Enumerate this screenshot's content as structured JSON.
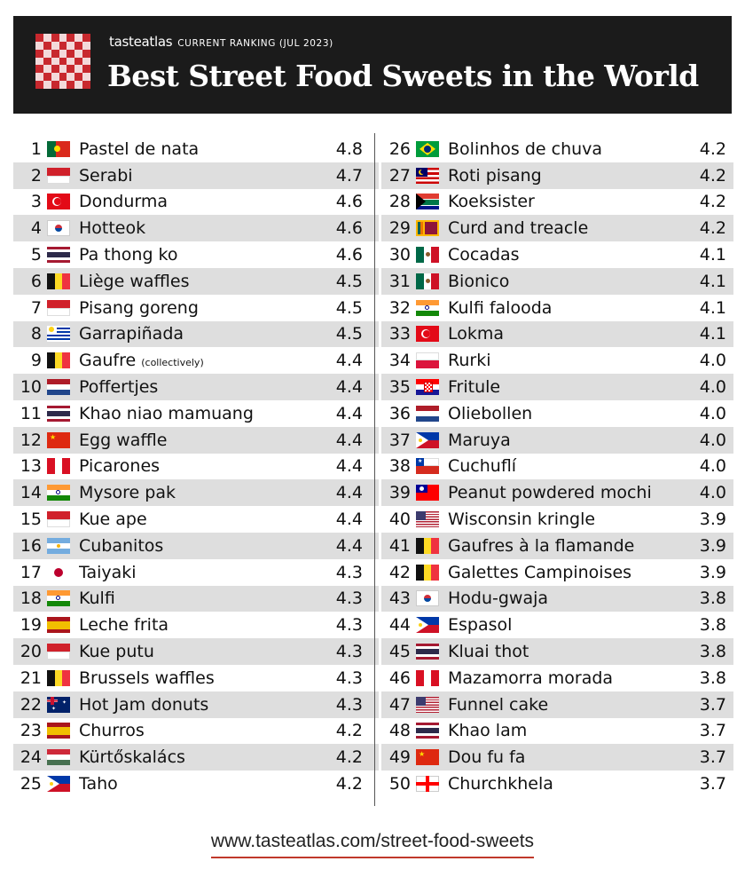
{
  "header": {
    "brand": "tasteatlas",
    "ranking_label": "CURRENT RANKING (JUL 2023)",
    "title": "Best Street Food Sweets in the World"
  },
  "colors": {
    "header_bg": "#1b1b1b",
    "row_alt": "#dedede",
    "underline": "#c0392b",
    "logo_red": "#c8282e"
  },
  "rankings": [
    {
      "rank": "1",
      "name": "Pastel de nata",
      "score": "4.8",
      "flag": "pt"
    },
    {
      "rank": "2",
      "name": "Serabi",
      "score": "4.7",
      "flag": "id"
    },
    {
      "rank": "3",
      "name": "Dondurma",
      "score": "4.6",
      "flag": "tr"
    },
    {
      "rank": "4",
      "name": "Hotteok",
      "score": "4.6",
      "flag": "kr"
    },
    {
      "rank": "5",
      "name": "Pa thong ko",
      "score": "4.6",
      "flag": "th"
    },
    {
      "rank": "6",
      "name": "Liège waffles",
      "score": "4.5",
      "flag": "be"
    },
    {
      "rank": "7",
      "name": "Pisang goreng",
      "score": "4.5",
      "flag": "id"
    },
    {
      "rank": "8",
      "name": "Garrapiñada",
      "score": "4.5",
      "flag": "uy"
    },
    {
      "rank": "9",
      "name": "Gaufre",
      "note": "(collectively)",
      "score": "4.4",
      "flag": "be"
    },
    {
      "rank": "10",
      "name": "Poffertjes",
      "score": "4.4",
      "flag": "nl"
    },
    {
      "rank": "11",
      "name": "Khao niao mamuang",
      "score": "4.4",
      "flag": "th"
    },
    {
      "rank": "12",
      "name": "Egg waffle",
      "score": "4.4",
      "flag": "cn"
    },
    {
      "rank": "13",
      "name": "Picarones",
      "score": "4.4",
      "flag": "pe"
    },
    {
      "rank": "14",
      "name": "Mysore pak",
      "score": "4.4",
      "flag": "in"
    },
    {
      "rank": "15",
      "name": "Kue ape",
      "score": "4.4",
      "flag": "id"
    },
    {
      "rank": "16",
      "name": "Cubanitos",
      "score": "4.4",
      "flag": "ar"
    },
    {
      "rank": "17",
      "name": "Taiyaki",
      "score": "4.3",
      "flag": "jp"
    },
    {
      "rank": "18",
      "name": "Kulfi",
      "score": "4.3",
      "flag": "in"
    },
    {
      "rank": "19",
      "name": "Leche frita",
      "score": "4.3",
      "flag": "es"
    },
    {
      "rank": "20",
      "name": "Kue putu",
      "score": "4.3",
      "flag": "id"
    },
    {
      "rank": "21",
      "name": "Brussels waffles",
      "score": "4.3",
      "flag": "be"
    },
    {
      "rank": "22",
      "name": "Hot Jam donuts",
      "score": "4.3",
      "flag": "au"
    },
    {
      "rank": "23",
      "name": "Churros",
      "score": "4.2",
      "flag": "es"
    },
    {
      "rank": "24",
      "name": "Kürtőskalács",
      "score": "4.2",
      "flag": "hu"
    },
    {
      "rank": "25",
      "name": "Taho",
      "score": "4.2",
      "flag": "ph"
    },
    {
      "rank": "26",
      "name": "Bolinhos de chuva",
      "score": "4.2",
      "flag": "br"
    },
    {
      "rank": "27",
      "name": "Roti pisang",
      "score": "4.2",
      "flag": "my"
    },
    {
      "rank": "28",
      "name": "Koeksister",
      "score": "4.2",
      "flag": "za"
    },
    {
      "rank": "29",
      "name": "Curd and treacle",
      "score": "4.2",
      "flag": "lk"
    },
    {
      "rank": "30",
      "name": "Cocadas",
      "score": "4.1",
      "flag": "mx"
    },
    {
      "rank": "31",
      "name": "Bionico",
      "score": "4.1",
      "flag": "mx"
    },
    {
      "rank": "32",
      "name": "Kulfi falooda",
      "score": "4.1",
      "flag": "in"
    },
    {
      "rank": "33",
      "name": "Lokma",
      "score": "4.1",
      "flag": "tr"
    },
    {
      "rank": "34",
      "name": "Rurki",
      "score": "4.0",
      "flag": "pl"
    },
    {
      "rank": "35",
      "name": "Fritule",
      "score": "4.0",
      "flag": "hr"
    },
    {
      "rank": "36",
      "name": "Oliebollen",
      "score": "4.0",
      "flag": "nl"
    },
    {
      "rank": "37",
      "name": "Maruya",
      "score": "4.0",
      "flag": "ph"
    },
    {
      "rank": "38",
      "name": "Cuchuflí",
      "score": "4.0",
      "flag": "cl"
    },
    {
      "rank": "39",
      "name": "Peanut powdered mochi",
      "score": "4.0",
      "flag": "tw"
    },
    {
      "rank": "40",
      "name": "Wisconsin kringle",
      "score": "3.9",
      "flag": "us"
    },
    {
      "rank": "41",
      "name": "Gaufres à la flamande",
      "score": "3.9",
      "flag": "be"
    },
    {
      "rank": "42",
      "name": "Galettes Campinoises",
      "score": "3.9",
      "flag": "be"
    },
    {
      "rank": "43",
      "name": "Hodu-gwaja",
      "score": "3.8",
      "flag": "kr"
    },
    {
      "rank": "44",
      "name": "Espasol",
      "score": "3.8",
      "flag": "ph"
    },
    {
      "rank": "45",
      "name": "Kluai thot",
      "score": "3.8",
      "flag": "th"
    },
    {
      "rank": "46",
      "name": "Mazamorra morada",
      "score": "3.8",
      "flag": "pe"
    },
    {
      "rank": "47",
      "name": "Funnel cake",
      "score": "3.7",
      "flag": "us"
    },
    {
      "rank": "48",
      "name": "Khao lam",
      "score": "3.7",
      "flag": "th"
    },
    {
      "rank": "49",
      "name": "Dou fu fa",
      "score": "3.7",
      "flag": "cn"
    },
    {
      "rank": "50",
      "name": "Churchkhela",
      "score": "3.7",
      "flag": "ge"
    }
  ],
  "footer": {
    "url": "www.tasteatlas.com/street-food-sweets"
  }
}
